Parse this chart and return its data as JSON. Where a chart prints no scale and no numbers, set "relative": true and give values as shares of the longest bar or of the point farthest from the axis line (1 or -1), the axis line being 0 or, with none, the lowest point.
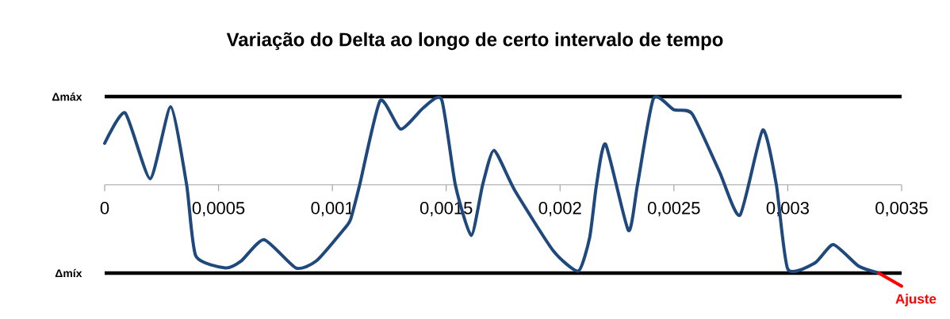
{
  "chart_data": {
    "type": "line",
    "title": "Variação do Delta  ao longo de certo intervalo de tempo",
    "relative": true,
    "marker": "none",
    "xlim": [
      0,
      0.0035
    ],
    "xticks": [
      0,
      {
        "value": 0.0005,
        "label": "0,0005"
      },
      {
        "value": 0.001,
        "label": "0,001"
      },
      {
        "value": 0.0015,
        "label": "0,0015"
      },
      {
        "value": 0.002,
        "label": "0,002"
      },
      {
        "value": 0.0025,
        "label": "0,0025"
      },
      {
        "value": 0.003,
        "label": "0,003"
      },
      {
        "value": 0.0035,
        "label": "0,0035"
      }
    ],
    "ref_lines": [
      {
        "axis": "y",
        "value": 0.87,
        "label": "Δmáx",
        "color": "#000000"
      },
      {
        "axis": "y",
        "value": -0.87,
        "label": "Δmíx",
        "color": "#000000"
      }
    ],
    "series": [
      {
        "color": "#1f497d",
        "x": [
          0,
          9e-05,
          0.0002,
          0.00029,
          0.00036,
          0.0004,
          0.00053,
          0.0006,
          0.0007,
          0.00084,
          0.00093,
          0.00105,
          0.00108,
          0.00112,
          0.00121,
          0.0013,
          0.0014,
          0.00148,
          0.00154,
          0.00161,
          0.00166,
          0.00171,
          0.0018,
          0.00197,
          0.00208,
          0.00213,
          0.00216,
          0.0022,
          0.0023,
          0.00234,
          0.00241,
          0.0025,
          0.00258,
          0.0027,
          0.00279,
          0.00289,
          0.00295,
          0.003,
          0.00312,
          0.0032,
          0.00331,
          0.0034
        ],
        "values": [
          0.41,
          0.71,
          0.06,
          0.77,
          0,
          -0.7,
          -0.82,
          -0.75,
          -0.54,
          -0.82,
          -0.75,
          -0.44,
          -0.34,
          0,
          0.83,
          0.55,
          0.76,
          0.84,
          0,
          -0.5,
          0,
          0.34,
          -0.05,
          -0.65,
          -0.85,
          -0.52,
          0,
          0.4,
          -0.45,
          0,
          0.85,
          0.74,
          0.7,
          0.13,
          -0.3,
          0.54,
          0,
          -0.83,
          -0.77,
          -0.59,
          -0.8,
          -0.87
        ]
      },
      {
        "name": "Ajuste",
        "color": "#ff0000",
        "x": [
          0.0034,
          0.0035
        ],
        "values": [
          -0.87,
          -1
        ]
      }
    ]
  }
}
